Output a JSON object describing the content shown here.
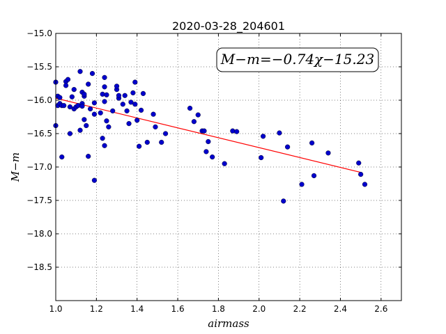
{
  "chart_data": {
    "type": "scatter",
    "title": "2020-03-28_204601",
    "xlabel": "airmass",
    "ylabel": "M−m",
    "xlim": [
      1.0,
      2.7
    ],
    "ylim": [
      -15.0,
      -19.0
    ],
    "y_inverted": true,
    "grid": true,
    "xticks": [
      1.0,
      1.2,
      1.4,
      1.6,
      1.8,
      2.0,
      2.2,
      2.4,
      2.6
    ],
    "xtick_labels": [
      "1.0",
      "1.2",
      "1.4",
      "1.6",
      "1.8",
      "2.0",
      "2.2",
      "2.4",
      "2.6"
    ],
    "yticks": [
      -15.0,
      -15.5,
      -16.0,
      -16.5,
      -17.0,
      -17.5,
      -18.0,
      -18.5
    ],
    "ytick_labels": [
      "−15.0",
      "−15.5",
      "−16.0",
      "−16.5",
      "−17.0",
      "−17.5",
      "−18.0",
      "−18.5"
    ],
    "annotation": "M−m=−0.74χ−15.23",
    "fit": {
      "slope": -0.74,
      "intercept": -15.23,
      "x_range": [
        1.0,
        2.5
      ],
      "color": "#ff0000"
    },
    "series": [
      {
        "color": "#0000cc",
        "points": [
          [
            1.0,
            -15.73
          ],
          [
            1.0,
            -16.38
          ],
          [
            1.01,
            -15.94
          ],
          [
            1.01,
            -16.08
          ],
          [
            1.02,
            -16.05
          ],
          [
            1.02,
            -15.96
          ],
          [
            1.03,
            -16.08
          ],
          [
            1.03,
            -16.85
          ],
          [
            1.04,
            -16.08
          ],
          [
            1.05,
            -15.72
          ],
          [
            1.05,
            -15.78
          ],
          [
            1.06,
            -15.69
          ],
          [
            1.07,
            -16.1
          ],
          [
            1.07,
            -16.5
          ],
          [
            1.08,
            -15.95
          ],
          [
            1.09,
            -15.84
          ],
          [
            1.09,
            -16.13
          ],
          [
            1.1,
            -16.1
          ],
          [
            1.11,
            -16.08
          ],
          [
            1.12,
            -15.57
          ],
          [
            1.12,
            -16.45
          ],
          [
            1.13,
            -16.05
          ],
          [
            1.13,
            -16.09
          ],
          [
            1.13,
            -15.88
          ],
          [
            1.14,
            -15.94
          ],
          [
            1.14,
            -15.91
          ],
          [
            1.14,
            -16.29
          ],
          [
            1.15,
            -16.38
          ],
          [
            1.16,
            -15.76
          ],
          [
            1.16,
            -16.84
          ],
          [
            1.17,
            -16.13
          ],
          [
            1.18,
            -15.6
          ],
          [
            1.19,
            -16.04
          ],
          [
            1.19,
            -16.21
          ],
          [
            1.19,
            -17.2
          ],
          [
            1.22,
            -16.19
          ],
          [
            1.23,
            -15.91
          ],
          [
            1.23,
            -16.57
          ],
          [
            1.24,
            -16.02
          ],
          [
            1.24,
            -15.8
          ],
          [
            1.24,
            -15.66
          ],
          [
            1.24,
            -16.68
          ],
          [
            1.25,
            -16.31
          ],
          [
            1.25,
            -15.92
          ],
          [
            1.26,
            -16.4
          ],
          [
            1.28,
            -16.16
          ],
          [
            1.3,
            -15.84
          ],
          [
            1.3,
            -15.79
          ],
          [
            1.31,
            -15.97
          ],
          [
            1.31,
            -15.93
          ],
          [
            1.33,
            -16.06
          ],
          [
            1.34,
            -15.93
          ],
          [
            1.35,
            -16.16
          ],
          [
            1.36,
            -16.35
          ],
          [
            1.37,
            -16.03
          ],
          [
            1.38,
            -15.89
          ],
          [
            1.39,
            -16.06
          ],
          [
            1.39,
            -15.73
          ],
          [
            1.4,
            -16.3
          ],
          [
            1.41,
            -16.69
          ],
          [
            1.42,
            -16.15
          ],
          [
            1.43,
            -15.9
          ],
          [
            1.45,
            -16.63
          ],
          [
            1.48,
            -16.21
          ],
          [
            1.49,
            -16.4
          ],
          [
            1.52,
            -16.63
          ],
          [
            1.54,
            -16.5
          ],
          [
            1.66,
            -16.12
          ],
          [
            1.68,
            -16.32
          ],
          [
            1.7,
            -16.22
          ],
          [
            1.72,
            -16.46
          ],
          [
            1.73,
            -16.46
          ],
          [
            1.74,
            -16.77
          ],
          [
            1.75,
            -16.62
          ],
          [
            1.77,
            -16.85
          ],
          [
            1.83,
            -16.95
          ],
          [
            1.87,
            -16.46
          ],
          [
            1.89,
            -16.47
          ],
          [
            2.01,
            -16.86
          ],
          [
            2.02,
            -16.54
          ],
          [
            2.1,
            -16.49
          ],
          [
            2.12,
            -17.51
          ],
          [
            2.14,
            -16.7
          ],
          [
            2.21,
            -17.26
          ],
          [
            2.26,
            -16.64
          ],
          [
            2.27,
            -17.13
          ],
          [
            2.34,
            -16.79
          ],
          [
            2.49,
            -16.94
          ],
          [
            2.5,
            -17.11
          ],
          [
            2.52,
            -17.26
          ]
        ]
      }
    ]
  }
}
